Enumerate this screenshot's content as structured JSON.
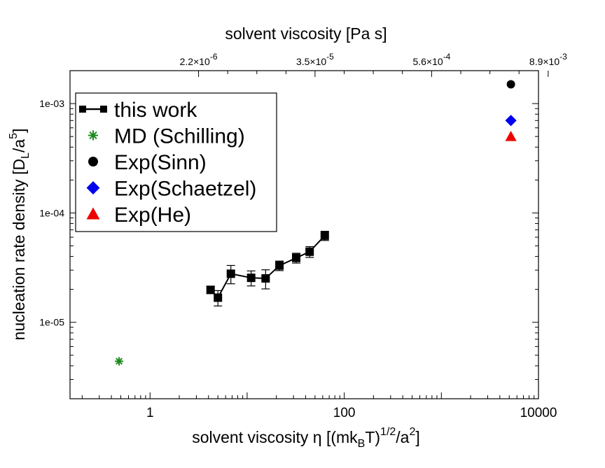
{
  "chart_data": {
    "type": "scatter",
    "xscale": "log",
    "yscale": "log",
    "xlim": [
      0.15,
      10000
    ],
    "ylim": [
      2e-06,
      0.002
    ],
    "top_axis": {
      "title": "solvent viscosity [Pa s]",
      "ticks": [
        {
          "at_x": 3.16,
          "mantissa": "2.2",
          "exponent": "-6"
        },
        {
          "at_x": 50,
          "mantissa": "3.5",
          "exponent": "-5"
        },
        {
          "at_x": 794,
          "mantissa": "5.6",
          "exponent": "-4"
        },
        {
          "at_x": 12590,
          "mantissa": "8.9",
          "exponent": "-3"
        }
      ]
    },
    "x_ticks": [
      {
        "value": 1,
        "label": "1"
      },
      {
        "value": 100,
        "label": "100"
      },
      {
        "value": 10000,
        "label": "10000"
      }
    ],
    "y_ticks": [
      {
        "value": 1e-05,
        "label": "1e-05"
      },
      {
        "value": 0.0001,
        "label": "1e-04"
      },
      {
        "value": 0.001,
        "label": "1e-03"
      }
    ],
    "xlabel": {
      "prefix": "solvent viscosity η [(mk",
      "sub": "B",
      "mid": "T)",
      "sup1": "1/2",
      "mid2": "/a",
      "sup2": "2",
      "suffix": "]"
    },
    "ylabel": {
      "prefix": "nucleation rate density [D",
      "sub": "L",
      "mid": "/a",
      "sup": "5",
      "suffix": "]"
    },
    "series": [
      {
        "name": "this work",
        "color": "#000000",
        "marker": "square",
        "line": true,
        "x": [
          4.2,
          5.0,
          6.8,
          11.0,
          15.5,
          21.5,
          32.0,
          44.0,
          63.0
        ],
        "y": [
          1.98e-05,
          1.68e-05,
          2.78e-05,
          2.55e-05,
          2.52e-05,
          3.3e-05,
          3.88e-05,
          4.42e-05,
          6.2e-05
        ],
        "err": [
          1.5e-06,
          2.7e-06,
          5.3e-06,
          4e-06,
          5e-06,
          3.3e-06,
          4e-06,
          5e-06,
          6e-06
        ]
      },
      {
        "name": "MD (Schilling)",
        "color": "#1a8a1a",
        "marker": "star",
        "line": false,
        "x": [
          0.48
        ],
        "y": [
          4.4e-06
        ]
      },
      {
        "name": "Exp(Sinn)",
        "color": "#000000",
        "marker": "circle",
        "line": false,
        "x": [
          5200
        ],
        "y": [
          0.0015
        ]
      },
      {
        "name": "Exp(Schaetzel)",
        "color": "#0000ee",
        "marker": "diamond",
        "line": false,
        "x": [
          5200
        ],
        "y": [
          0.0007
        ]
      },
      {
        "name": "Exp(He)",
        "color": "#ee0000",
        "marker": "triangle",
        "line": false,
        "x": [
          5200
        ],
        "y": [
          0.0005
        ]
      }
    ],
    "legend": {
      "position": "top-left"
    }
  }
}
